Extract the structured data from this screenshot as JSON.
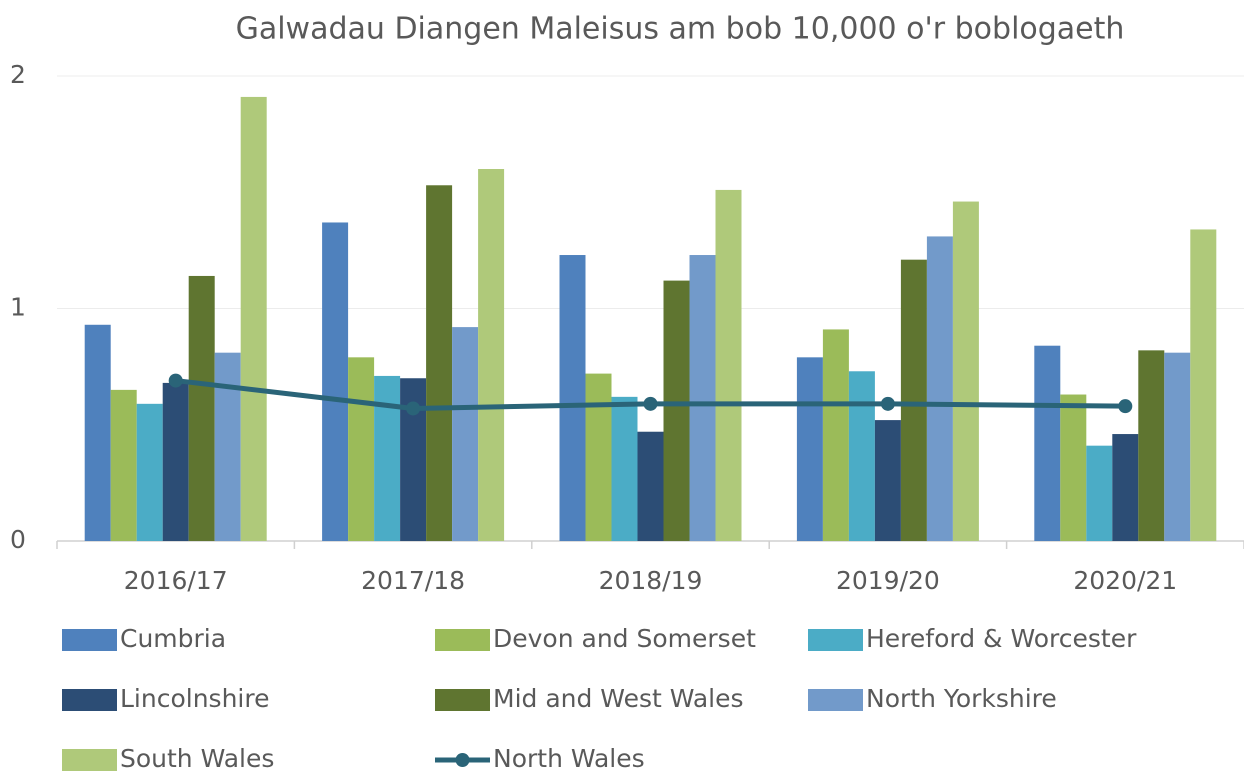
{
  "chart_data": {
    "type": "bar",
    "title": "Galwadau Diangen Maleisus am bob 10,000 o'r boblogaeth",
    "categories": [
      "2016/17",
      "2017/18",
      "2018/19",
      "2019/20",
      "2020/21"
    ],
    "series": [
      {
        "name": "Cumbria",
        "color": "#4f81bd",
        "values": [
          0.93,
          1.37,
          1.23,
          0.79,
          0.84
        ]
      },
      {
        "name": "Devon and Somerset",
        "color": "#9bbb59",
        "values": [
          0.65,
          0.79,
          0.72,
          0.91,
          0.63
        ]
      },
      {
        "name": "Hereford & Worcester",
        "color": "#4bacc6",
        "values": [
          0.59,
          0.71,
          0.62,
          0.73,
          0.41
        ]
      },
      {
        "name": "Lincolnshire",
        "color": "#2c4d75",
        "values": [
          0.68,
          0.7,
          0.47,
          0.52,
          0.46
        ]
      },
      {
        "name": "Mid and West Wales",
        "color": "#5f7530",
        "values": [
          1.14,
          1.53,
          1.12,
          1.21,
          0.82
        ]
      },
      {
        "name": "North Yorkshire",
        "color": "#729aca",
        "values": [
          0.81,
          0.92,
          1.23,
          1.31,
          0.81
        ]
      },
      {
        "name": "South Wales",
        "color": "#afc97a",
        "values": [
          1.91,
          1.6,
          1.51,
          1.46,
          1.34
        ]
      },
      {
        "name": "North Wales",
        "color": "#2a6478",
        "type": "line",
        "values": [
          0.69,
          0.57,
          0.59,
          0.59,
          0.58
        ]
      }
    ],
    "ylim": [
      0,
      2
    ],
    "yticks": [
      0,
      1,
      2
    ],
    "grid": true,
    "legend": "bottom"
  }
}
